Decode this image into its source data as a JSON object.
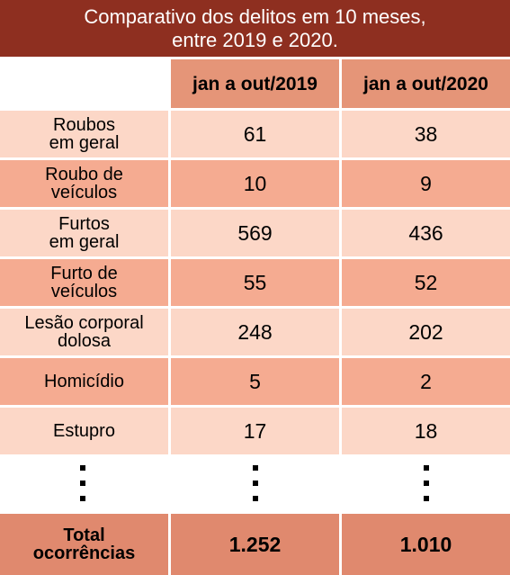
{
  "title": [
    "Comparativo dos delitos em 10 meses,",
    "entre 2019 e 2020."
  ],
  "table": {
    "header": [
      "jan a out/2019",
      "jan a out/2020"
    ],
    "rows": [
      [
        [
          "Roubos",
          "em geral"
        ],
        61,
        38
      ],
      [
        [
          "Roubo de",
          "veículos"
        ],
        10,
        9
      ],
      [
        [
          "Furtos",
          "em geral"
        ],
        569,
        436
      ],
      [
        [
          "Furto de",
          "veículos"
        ],
        55,
        52
      ],
      [
        [
          "Lesão corporal",
          "dolosa"
        ],
        248,
        202
      ],
      [
        [
          "Homicídio"
        ],
        5,
        2
      ],
      [
        [
          "Estupro"
        ],
        17,
        18
      ]
    ],
    "total": [
      [
        "Total",
        "ocorrências"
      ],
      "1.252",
      "1.010"
    ]
  }
}
